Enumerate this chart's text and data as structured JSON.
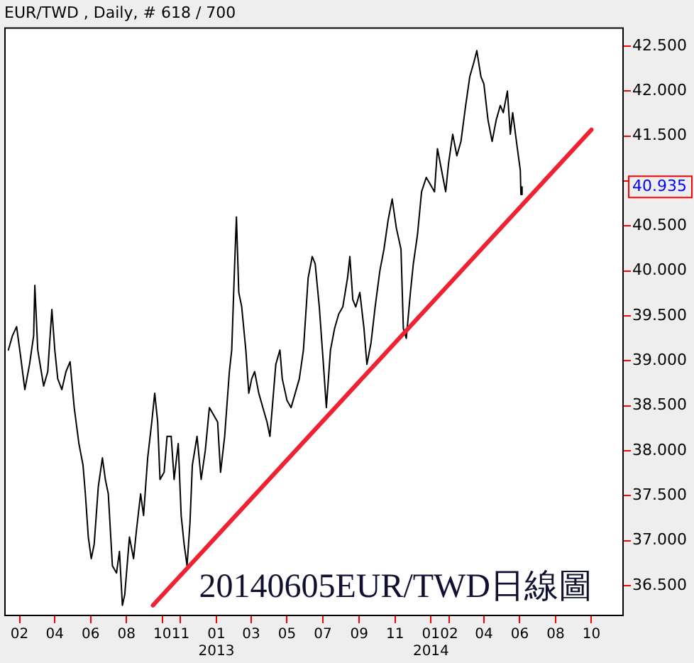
{
  "chart_data": {
    "type": "line",
    "title": "EUR/TWD , Daily, # 618 / 700",
    "marker": "none",
    "line_style": "solid",
    "legend": false,
    "grid": false,
    "xlim": [
      "2012-01-06",
      "2014-11-25"
    ],
    "ylim": [
      36.16,
      42.71
    ],
    "xticks": [
      {
        "value": "2012-02-01",
        "label": "02"
      },
      {
        "value": "2012-04-01",
        "label": "04"
      },
      {
        "value": "2012-06-01",
        "label": "06"
      },
      {
        "value": "2012-08-01",
        "label": "08"
      },
      {
        "value": "2012-10-01",
        "label": "10"
      },
      {
        "value": "2012-11-01",
        "label": "11"
      },
      {
        "value": "2013-01-01",
        "label": "01\n2013"
      },
      {
        "value": "2013-03-01",
        "label": "03"
      },
      {
        "value": "2013-05-01",
        "label": "05"
      },
      {
        "value": "2013-07-01",
        "label": "07"
      },
      {
        "value": "2013-09-01",
        "label": "09"
      },
      {
        "value": "2013-11-01",
        "label": "11"
      },
      {
        "value": "2014-01-01",
        "label": "01\n2014"
      },
      {
        "value": "2014-02-01",
        "label": "02"
      },
      {
        "value": "2014-04-01",
        "label": "04"
      },
      {
        "value": "2014-06-01",
        "label": "06"
      },
      {
        "value": "2014-08-01",
        "label": "08"
      },
      {
        "value": "2014-10-01",
        "label": "10"
      }
    ],
    "yticks": [
      {
        "value": 36.5,
        "label": "36.500"
      },
      {
        "value": 37,
        "label": "37.000"
      },
      {
        "value": 37.5,
        "label": "37.500"
      },
      {
        "value": 38,
        "label": "38.000"
      },
      {
        "value": 38.5,
        "label": "38.500"
      },
      {
        "value": 39,
        "label": "39.000"
      },
      {
        "value": 39.5,
        "label": "39.500"
      },
      {
        "value": 40,
        "label": "40.000"
      },
      {
        "value": 40.5,
        "label": "40.500"
      },
      {
        "value": 41,
        "label": null
      },
      {
        "value": 41.5,
        "label": "41.500"
      },
      {
        "value": 42,
        "label": "42.000"
      },
      {
        "value": 42.5,
        "label": "42.500"
      }
    ],
    "annotations": [
      "20140605EUR/TWD日線圖",
      "40.935"
    ],
    "series": [
      {
        "color": "#000000",
        "x": [
          "2012-01-13",
          "2012-01-20",
          "2012-01-27",
          "2012-02-03",
          "2012-02-10",
          "2012-02-18",
          "2012-02-25",
          "2012-02-27",
          "2012-03-03",
          "2012-03-13",
          "2012-03-20",
          "2012-03-27",
          "2012-04-01",
          "2012-04-06",
          "2012-04-13",
          "2012-04-20",
          "2012-04-27",
          "2012-05-04",
          "2012-05-12",
          "2012-05-19",
          "2012-05-23",
          "2012-05-28",
          "2012-06-02",
          "2012-06-07",
          "2012-06-14",
          "2012-06-21",
          "2012-06-26",
          "2012-07-01",
          "2012-07-08",
          "2012-07-15",
          "2012-07-20",
          "2012-07-25",
          "2012-07-29",
          "2012-08-06",
          "2012-08-13",
          "2012-08-18",
          "2012-08-25",
          "2012-08-30",
          "2012-09-06",
          "2012-09-13",
          "2012-09-18",
          "2012-09-23",
          "2012-09-27",
          "2012-10-04",
          "2012-10-09",
          "2012-10-16",
          "2012-10-21",
          "2012-10-28",
          "2012-11-02",
          "2012-11-07",
          "2012-11-12",
          "2012-11-17",
          "2012-11-21",
          "2012-11-29",
          "2012-12-06",
          "2012-12-13",
          "2012-12-20",
          "2012-12-27",
          "2013-01-03",
          "2013-01-08",
          "2013-01-15",
          "2013-01-23",
          "2013-01-27",
          "2013-02-01",
          "2013-02-04",
          "2013-02-08",
          "2013-02-13",
          "2013-02-20",
          "2013-02-25",
          "2013-03-02",
          "2013-03-07",
          "2013-03-14",
          "2013-03-21",
          "2013-03-28",
          "2013-04-02",
          "2013-04-12",
          "2013-04-19",
          "2013-04-23",
          "2013-05-01",
          "2013-05-08",
          "2013-05-15",
          "2013-05-22",
          "2013-05-29",
          "2013-06-06",
          "2013-06-13",
          "2013-06-18",
          "2013-06-25",
          "2013-07-02",
          "2013-07-07",
          "2013-07-14",
          "2013-07-21",
          "2013-07-28",
          "2013-08-04",
          "2013-08-12",
          "2013-08-16",
          "2013-08-21",
          "2013-08-26",
          "2013-09-02",
          "2013-09-09",
          "2013-09-14",
          "2013-09-21",
          "2013-09-28",
          "2013-10-06",
          "2013-10-13",
          "2013-10-20",
          "2013-10-27",
          "2013-11-03",
          "2013-11-11",
          "2013-11-15",
          "2013-11-20",
          "2013-11-27",
          "2013-12-02",
          "2013-12-09",
          "2013-12-16",
          "2013-12-24",
          "2013-12-31",
          "2014-01-07",
          "2014-01-12",
          "2014-01-19",
          "2014-01-26",
          "2014-01-31",
          "2014-02-07",
          "2014-02-14",
          "2014-02-21",
          "2014-03-01",
          "2014-03-08",
          "2014-03-15",
          "2014-03-20",
          "2014-03-27",
          "2014-04-01",
          "2014-04-08",
          "2014-04-15",
          "2014-04-22",
          "2014-04-29",
          "2014-05-04",
          "2014-05-11",
          "2014-05-16",
          "2014-05-20",
          "2014-05-28",
          "2014-06-02",
          "2014-06-03",
          "2014-06-05"
        ],
        "values": [
          39.12,
          39.28,
          39.38,
          39.04,
          38.68,
          38.96,
          39.28,
          39.84,
          39.12,
          38.72,
          38.88,
          39.57,
          39.12,
          38.8,
          38.68,
          38.88,
          38.99,
          38.48,
          38.08,
          37.84,
          37.52,
          37.04,
          36.8,
          36.96,
          37.6,
          37.92,
          37.68,
          37.52,
          36.72,
          36.64,
          36.88,
          36.28,
          36.4,
          37.04,
          36.8,
          37.12,
          37.52,
          37.28,
          37.92,
          38.32,
          38.64,
          38.32,
          37.68,
          37.76,
          38.16,
          38.16,
          37.68,
          38.08,
          37.28,
          36.96,
          36.72,
          37.2,
          37.84,
          38.16,
          37.68,
          38.0,
          38.48,
          38.4,
          38.32,
          37.76,
          38.16,
          38.88,
          39.12,
          40.08,
          40.6,
          39.76,
          39.6,
          39.12,
          38.64,
          38.8,
          38.88,
          38.64,
          38.48,
          38.32,
          38.16,
          38.96,
          39.12,
          38.8,
          38.56,
          38.48,
          38.64,
          38.8,
          39.12,
          39.92,
          40.16,
          40.08,
          39.6,
          38.96,
          38.48,
          39.12,
          39.36,
          39.52,
          39.6,
          39.92,
          40.16,
          39.68,
          39.6,
          39.76,
          39.36,
          38.96,
          39.2,
          39.6,
          40.0,
          40.24,
          40.56,
          40.8,
          40.48,
          40.24,
          39.36,
          39.25,
          39.76,
          40.08,
          40.4,
          40.88,
          41.04,
          40.96,
          40.88,
          41.36,
          41.12,
          40.88,
          41.2,
          41.52,
          41.28,
          41.44,
          41.84,
          42.16,
          42.32,
          42.45,
          42.16,
          42.08,
          41.68,
          41.44,
          41.68,
          41.84,
          41.76,
          42.0,
          41.52,
          41.76,
          41.36,
          41.12,
          40.85,
          40.935
        ]
      },
      {
        "type": "line",
        "color": "#ee2233",
        "x": [
          "2012-09-15",
          "2014-10-01"
        ],
        "values": [
          36.28,
          41.57
        ]
      }
    ]
  }
}
